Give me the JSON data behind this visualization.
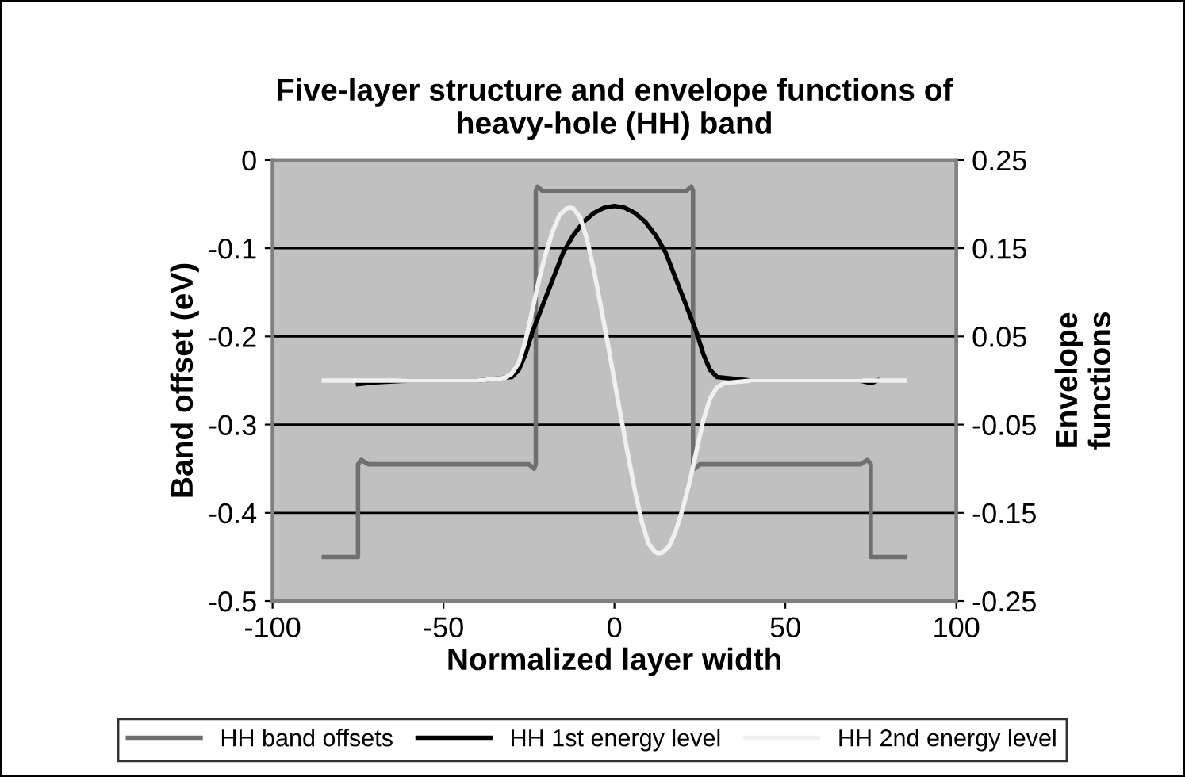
{
  "chart_data": {
    "type": "line",
    "title": "Five-layer structure and envelope functions of\nheavy-hole (HH) band",
    "xlabel": "Normalized layer width",
    "ylabel": "Band offset (eV)",
    "y2label": "Envelope\nfunctions",
    "xlim": [
      -100,
      100
    ],
    "xticks": [
      -100,
      -50,
      0,
      50,
      100
    ],
    "ylim": [
      -0.5,
      0
    ],
    "yticks": [
      -0.5,
      -0.4,
      -0.3,
      -0.2,
      -0.1,
      0
    ],
    "y2lim": [
      -0.25,
      0.25
    ],
    "y2ticks": [
      -0.25,
      -0.15,
      -0.05,
      0.05,
      0.15,
      0.25
    ],
    "grid": "y",
    "legend": "bottom",
    "line_style": "solid",
    "marker": "none",
    "series": [
      {
        "name": "HH band offsets",
        "color": "#707070",
        "x": [
          -85,
          -75,
          -75,
          -74,
          -72,
          -25,
          -23.5,
          -23,
          -23,
          -22.5,
          -21,
          21,
          22.5,
          23,
          23,
          23.5,
          25,
          72,
          74,
          75,
          75,
          85
        ],
        "values": [
          -0.45,
          -0.45,
          -0.345,
          -0.34,
          -0.345,
          -0.345,
          -0.35,
          -0.345,
          -0.035,
          -0.03,
          -0.035,
          -0.035,
          -0.03,
          -0.035,
          -0.345,
          -0.35,
          -0.345,
          -0.345,
          -0.34,
          -0.345,
          -0.45,
          -0.45
        ]
      },
      {
        "name": "HH 1st energy level",
        "color": "#000000",
        "axis": "y2",
        "x": [
          -75,
          -70,
          -60,
          -40,
          -30,
          -28,
          -26,
          -24,
          -22,
          -20,
          -17,
          -15,
          -12,
          -9,
          -6,
          -3,
          0,
          3,
          6,
          9,
          12,
          15,
          17,
          20,
          22,
          24,
          26,
          28,
          30,
          40,
          60,
          72,
          75,
          77
        ],
        "values": [
          -0.004,
          -0.002,
          0,
          0,
          0.004,
          0.012,
          0.03,
          0.055,
          0.075,
          0.095,
          0.125,
          0.145,
          0.165,
          0.18,
          0.19,
          0.196,
          0.198,
          0.196,
          0.19,
          0.18,
          0.165,
          0.145,
          0.125,
          0.095,
          0.075,
          0.055,
          0.03,
          0.012,
          0.004,
          0,
          0,
          0,
          -0.003,
          0
        ]
      },
      {
        "name": "HH 2nd energy level",
        "color": "#f0f0f0",
        "axis": "y2",
        "x": [
          -85,
          -60,
          -40,
          -32,
          -30,
          -28,
          -26,
          -24,
          -22,
          -20,
          -18,
          -16,
          -14,
          -13,
          -12,
          -10,
          -8,
          -6,
          -4,
          -2,
          0,
          2,
          4,
          6,
          8,
          10,
          12,
          13,
          14,
          16,
          18,
          20,
          22,
          24,
          26,
          28,
          30,
          32,
          40,
          60,
          85
        ],
        "values": [
          0,
          0,
          0,
          0.003,
          0.008,
          0.02,
          0.045,
          0.08,
          0.115,
          0.145,
          0.17,
          0.188,
          0.195,
          0.196,
          0.195,
          0.185,
          0.16,
          0.125,
          0.085,
          0.043,
          0,
          -0.043,
          -0.085,
          -0.125,
          -0.16,
          -0.185,
          -0.195,
          -0.196,
          -0.195,
          -0.188,
          -0.17,
          -0.145,
          -0.115,
          -0.08,
          -0.045,
          -0.02,
          -0.008,
          -0.003,
          0,
          0,
          0
        ]
      }
    ]
  }
}
